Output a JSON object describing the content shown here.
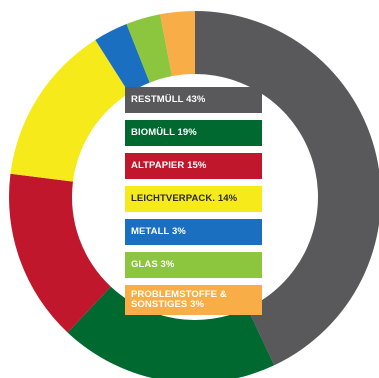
{
  "chart_data": {
    "type": "pie",
    "style": "donut",
    "start_angle_deg": 0,
    "direction": "clockwise",
    "legend_placement": "center",
    "slices": [
      {
        "label": "RESTMÜLL 43%",
        "value": 43,
        "color": "#59585a",
        "text_color": "#ffffff"
      },
      {
        "label": "BIOMÜLL 19%",
        "value": 19,
        "color": "#00692f",
        "text_color": "#ffffff"
      },
      {
        "label": "ALTPAPIER 15%",
        "value": 15,
        "color": "#c1172d",
        "text_color": "#ffffff"
      },
      {
        "label": "LEICHTVERPACK. 14%",
        "value": 14,
        "color": "#f6ea1b",
        "text_color": "#2a2a2a"
      },
      {
        "label": "METALL 3%",
        "value": 3,
        "color": "#1b6fc0",
        "text_color": "#ffffff"
      },
      {
        "label": "GLAS 3%",
        "value": 3,
        "color": "#8cc63f",
        "text_color": "#ffffff"
      },
      {
        "label": "PROBLEMSTOFFE & SONSTIGES 3%",
        "value": 3,
        "color": "#f9ad47",
        "text_color": "#ffffff"
      }
    ]
  }
}
